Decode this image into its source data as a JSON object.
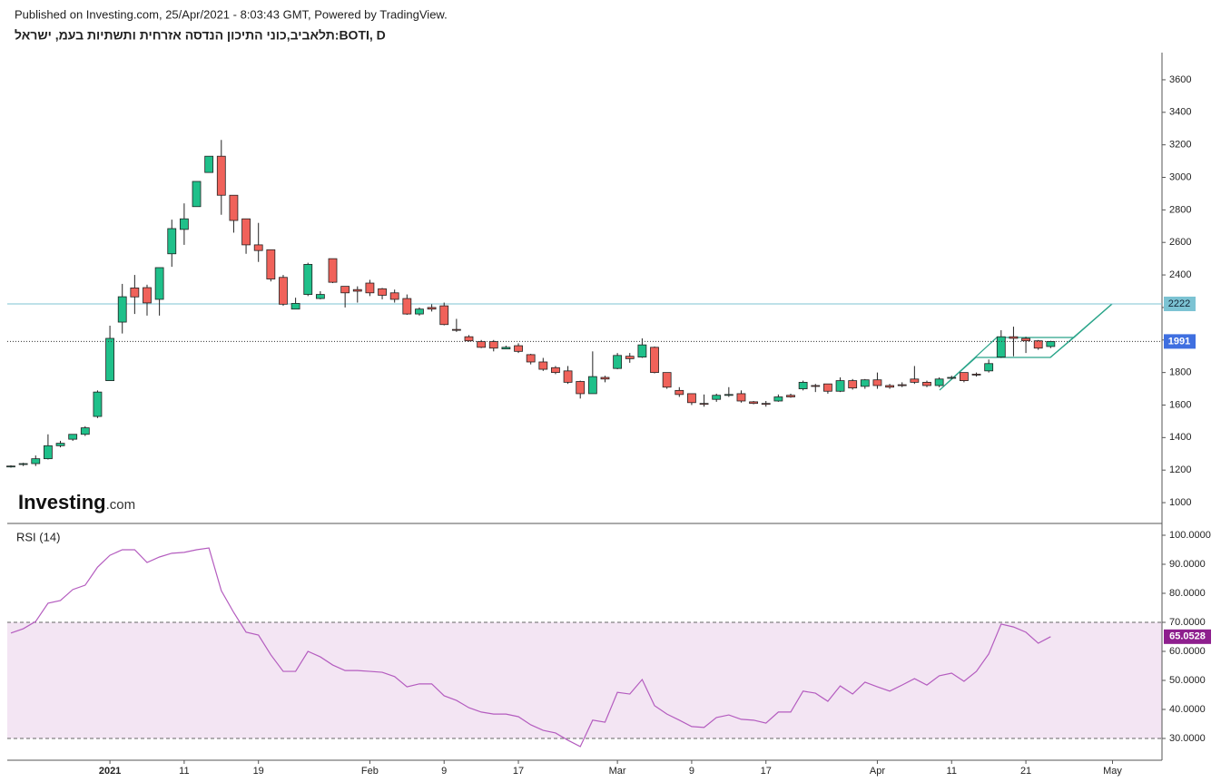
{
  "header": {
    "published": "Published on Investing.com, 25/Apr/2021 - 8:03:43 GMT, Powered by TradingView."
  },
  "watermark": {
    "brand": "Investing",
    "suffix": ".com"
  },
  "chart_data": [
    {
      "type": "candlestick",
      "title": "תלאביב,כוני התיכון הנדסה אזרחית ותשתיות בעמ, ישראל:BOTI, D",
      "categories": [
        null,
        null,
        null,
        null,
        null,
        null,
        null,
        null,
        "2021",
        null,
        null,
        null,
        null,
        null,
        "11",
        null,
        null,
        null,
        null,
        null,
        "19",
        null,
        null,
        null,
        null,
        null,
        null,
        null,
        null,
        "Feb",
        null,
        null,
        null,
        null,
        null,
        "9",
        null,
        null,
        null,
        null,
        null,
        "17",
        null,
        null,
        null,
        null,
        null,
        null,
        null,
        "Mar",
        null,
        null,
        null,
        null,
        null,
        "9",
        null,
        null,
        null,
        null,
        null,
        "17",
        null,
        null,
        null,
        null,
        null,
        null,
        null,
        null,
        "Apr",
        null,
        null,
        null,
        null,
        null,
        "11",
        null,
        null,
        null,
        null,
        null,
        "21",
        null,
        null,
        null,
        null,
        null,
        null,
        "May",
        null,
        null,
        null
      ],
      "open": [
        1220,
        1235,
        1240,
        1270,
        1350,
        1390,
        1420,
        1530,
        1750,
        2110,
        2320,
        2322,
        2250,
        2530,
        2680,
        2820,
        3030,
        3130,
        2890,
        2745,
        2585,
        2555,
        2385,
        2190,
        2280,
        2255,
        2500,
        2330,
        2310,
        2350,
        2315,
        2290,
        2255,
        2160,
        2200,
        2210,
        2065,
        2020,
        1990,
        1990,
        1945,
        1965,
        1910,
        1865,
        1830,
        1810,
        1745,
        1670,
        1770,
        1825,
        1900,
        1895,
        1955,
        1800,
        1690,
        1670,
        1610,
        1635,
        1660,
        1670,
        1620,
        1610,
        1625,
        1660,
        1700,
        1720,
        1730,
        1685,
        1750,
        1715,
        1755,
        1720,
        1725,
        1760,
        1740,
        1720,
        1765,
        1800,
        1790,
        1810,
        1895,
        2020,
        2010,
        1995,
        1960,
        null,
        null,
        null,
        null,
        null,
        null,
        null,
        null
      ],
      "high": [
        1230,
        1245,
        1290,
        1420,
        1380,
        1420,
        1470,
        1690,
        2088,
        2345,
        2400,
        2340,
        2445,
        2740,
        2840,
        2975,
        3130,
        3230,
        2890,
        2745,
        2720,
        2555,
        2400,
        2260,
        2475,
        2300,
        2500,
        2330,
        2330,
        2370,
        2320,
        2310,
        2280,
        2200,
        2220,
        2230,
        2130,
        2030,
        2000,
        2000,
        1965,
        1980,
        1915,
        1890,
        1840,
        1840,
        1750,
        1930,
        1780,
        1920,
        1920,
        2010,
        1960,
        1800,
        1710,
        1670,
        1665,
        1670,
        1710,
        1690,
        1625,
        1625,
        1665,
        1670,
        1750,
        1730,
        1730,
        1770,
        1760,
        1760,
        1800,
        1730,
        1740,
        1840,
        1750,
        1770,
        1780,
        1800,
        1800,
        1880,
        2060,
        2082,
        2020,
        2000,
        1995,
        null,
        null,
        null,
        null,
        null,
        null,
        null,
        null
      ],
      "low": [
        1215,
        1225,
        1225,
        1265,
        1340,
        1380,
        1410,
        1520,
        1750,
        2040,
        2160,
        2150,
        2150,
        2450,
        2585,
        2820,
        3030,
        2770,
        2660,
        2530,
        2480,
        2360,
        2210,
        2190,
        2270,
        2250,
        2350,
        2200,
        2230,
        2270,
        2250,
        2230,
        2155,
        2150,
        2175,
        2090,
        2050,
        1990,
        1950,
        1930,
        1945,
        1920,
        1850,
        1810,
        1790,
        1730,
        1640,
        1670,
        1740,
        1820,
        1860,
        1890,
        1795,
        1700,
        1650,
        1600,
        1590,
        1620,
        1650,
        1615,
        1605,
        1590,
        1620,
        1645,
        1690,
        1680,
        1670,
        1680,
        1695,
        1700,
        1700,
        1700,
        1710,
        1730,
        1710,
        1710,
        1760,
        1740,
        1775,
        1800,
        1890,
        1900,
        1920,
        1940,
        1950,
        null,
        null,
        null,
        null,
        null,
        null,
        null,
        null
      ],
      "close": [
        1225,
        1240,
        1270,
        1350,
        1365,
        1420,
        1460,
        1680,
        2010,
        2266,
        2265,
        2228,
        2445,
        2685,
        2745,
        2975,
        3130,
        2890,
        2735,
        2585,
        2550,
        2375,
        2220,
        2225,
        2465,
        2280,
        2355,
        2290,
        2300,
        2290,
        2275,
        2250,
        2160,
        2190,
        2190,
        2095,
        2060,
        1995,
        1955,
        1950,
        1955,
        1930,
        1865,
        1820,
        1800,
        1740,
        1670,
        1775,
        1760,
        1905,
        1885,
        1970,
        1800,
        1710,
        1665,
        1615,
        1605,
        1660,
        1665,
        1625,
        1610,
        1605,
        1650,
        1650,
        1740,
        1715,
        1685,
        1750,
        1705,
        1755,
        1720,
        1710,
        1720,
        1740,
        1720,
        1760,
        1770,
        1750,
        1785,
        1855,
        2020,
        2010,
        1995,
        1950,
        1991,
        null,
        null,
        null,
        null,
        null,
        null,
        null,
        null
      ],
      "up_color": "#1fc08a",
      "down_color": "#f0625a",
      "last_price_color": "#3f6fe0",
      "hline": {
        "value": 2222,
        "color": "#7cc3d3"
      },
      "ylim": [
        872,
        3767
      ],
      "yticks": [
        1000,
        1200,
        1400,
        1600,
        1800,
        2000,
        2200,
        2400,
        2600,
        2800,
        3000,
        3200,
        3400,
        3600
      ]
    },
    {
      "type": "line",
      "title": "RSI (14)",
      "values": [
        66.3,
        67.8,
        70.3,
        76.6,
        77.5,
        81.3,
        82.8,
        89,
        93.1,
        95,
        95,
        90.6,
        92.5,
        93.8,
        94.1,
        95,
        95.6,
        80.9,
        73.4,
        66.6,
        65.6,
        58.8,
        53.1,
        53.1,
        60,
        58.1,
        55.3,
        53.4,
        53.4,
        53.1,
        52.8,
        51.3,
        47.8,
        48.8,
        48.8,
        44.7,
        43.1,
        40.6,
        39.1,
        38.4,
        38.4,
        37.5,
        34.7,
        32.8,
        31.9,
        29.4,
        27.2,
        36.3,
        35.6,
        45.9,
        45.3,
        50.3,
        41.3,
        38.4,
        36.3,
        34.1,
        33.8,
        37.2,
        38.1,
        36.6,
        36.3,
        35.3,
        39.1,
        39.1,
        46.3,
        45.6,
        42.8,
        48.1,
        45.3,
        49.4,
        47.8,
        46.3,
        48.4,
        50.6,
        48.4,
        51.6,
        52.5,
        49.7,
        53.1,
        59.1,
        69.4,
        68.4,
        66.6,
        62.8,
        65.0528,
        null,
        null,
        null,
        null,
        null,
        null,
        null,
        null
      ],
      "color": "#b45cbf",
      "label_color": "#8e1f8e",
      "band": [
        30,
        70
      ],
      "band_color": "#f3e5f3",
      "ylim": [
        22.5,
        103.75
      ],
      "yticks": [
        {
          "value": 30,
          "label": "30.0000"
        },
        {
          "value": 40,
          "label": "40.0000"
        },
        {
          "value": 50,
          "label": "50.0000"
        },
        {
          "value": 60,
          "label": "60.0000"
        },
        {
          "value": 70,
          "label": "70.0000"
        },
        {
          "value": 80,
          "label": "80.0000"
        },
        {
          "value": 90,
          "label": "90.0000"
        },
        {
          "value": 100,
          "label": "100.0000"
        }
      ]
    }
  ]
}
